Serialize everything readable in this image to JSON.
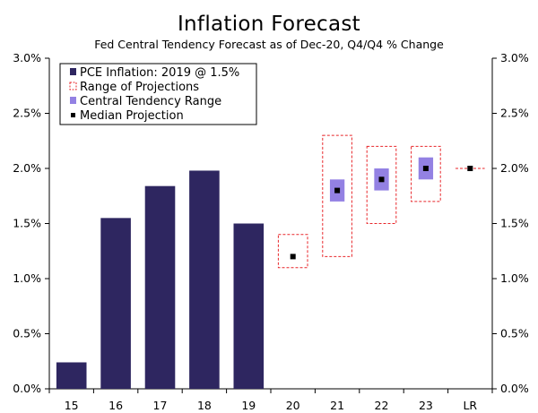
{
  "chart_data": {
    "type": "bar",
    "title": "Inflation Forecast",
    "subtitle": "Fed Central Tendency Forecast as of Dec-20, Q4/Q4 % Change",
    "categories": [
      "15",
      "16",
      "17",
      "18",
      "19",
      "20",
      "21",
      "22",
      "23",
      "LR"
    ],
    "ylim": [
      0.0,
      3.0
    ],
    "yticks": [
      "0.0%",
      "0.5%",
      "1.0%",
      "1.5%",
      "2.0%",
      "2.5%",
      "3.0%"
    ],
    "ytick_values": [
      0.0,
      0.5,
      1.0,
      1.5,
      2.0,
      2.5,
      3.0
    ],
    "legend": {
      "position": "top-left",
      "entries": [
        "PCE Inflation: 2019 @ 1.5%",
        "Range of Projections",
        "Central Tendency Range",
        "Median Projection"
      ]
    },
    "series": [
      {
        "name": "PCE Inflation",
        "values": [
          0.24,
          1.55,
          1.84,
          1.98,
          1.5,
          null,
          null,
          null,
          null,
          null
        ]
      },
      {
        "name": "Range of Projections",
        "low": [
          null,
          null,
          null,
          null,
          null,
          1.1,
          1.2,
          1.5,
          1.7,
          2.0
        ],
        "high": [
          null,
          null,
          null,
          null,
          null,
          1.4,
          2.3,
          2.2,
          2.2,
          2.0
        ]
      },
      {
        "name": "Central Tendency Range",
        "low": [
          null,
          null,
          null,
          null,
          null,
          null,
          1.7,
          1.8,
          1.9,
          2.0
        ],
        "high": [
          null,
          null,
          null,
          null,
          null,
          null,
          1.9,
          2.0,
          2.1,
          2.0
        ]
      },
      {
        "name": "Median Projection",
        "values": [
          null,
          null,
          null,
          null,
          null,
          1.2,
          1.8,
          1.9,
          2.0,
          2.0
        ]
      }
    ],
    "colors": {
      "bar": "#2e2660",
      "range": "#e8262a",
      "central": "#9381e3",
      "median": "#000000"
    }
  }
}
